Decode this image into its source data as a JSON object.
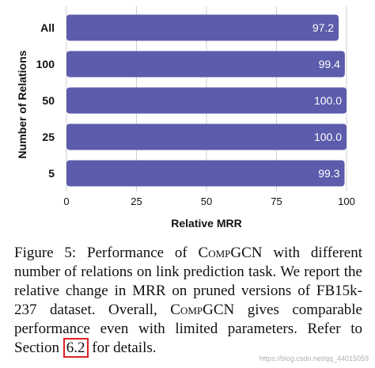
{
  "chart_data": {
    "type": "bar",
    "orientation": "horizontal",
    "categories": [
      "All",
      "100",
      "50",
      "25",
      "5"
    ],
    "values": [
      97.2,
      99.4,
      100.0,
      100.0,
      99.3
    ],
    "value_labels": [
      "97.2",
      "99.4",
      "100.0",
      "100.0",
      "99.3"
    ],
    "xlabel": "Relative MRR",
    "ylabel": "Number of Relations",
    "xlim": [
      0,
      100
    ],
    "xticks": [
      0,
      25,
      50,
      75,
      100
    ],
    "xtick_labels": [
      "0",
      "25",
      "50",
      "75",
      "100"
    ],
    "grid": "vertical",
    "bar_color": "#5c5cac",
    "grid_color": "#cfcfcf"
  },
  "caption": {
    "p1": "Figure 5:  Performance of ",
    "sc1": "CompGCN",
    "p2": " with different number of relations on link prediction task. We report the relative change in MRR on pruned versions of FB15k-237 dataset. Overall, ",
    "sc2": "CompGCN",
    "p3": " gives comparable performance even with limited parameters. Refer to Section ",
    "ref": "6.2",
    "p4": " for details."
  },
  "watermark": "https://blog.csdn.net/qq_44015059"
}
